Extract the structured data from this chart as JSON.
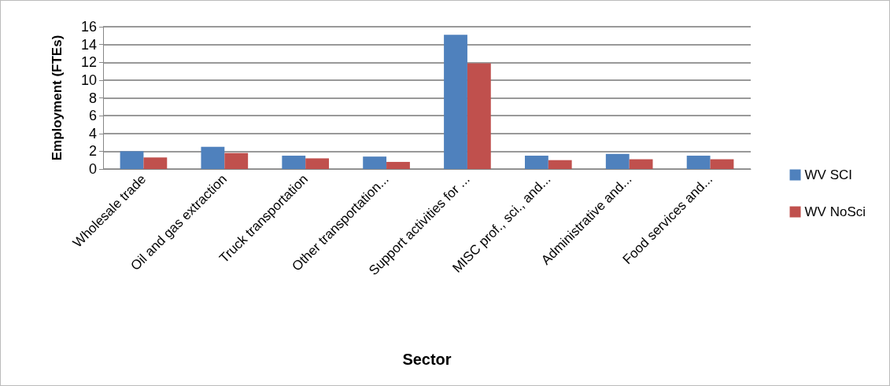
{
  "chart_data": {
    "type": "bar",
    "xlabel": "Sector",
    "ylabel": "Employment (FTEs)",
    "categories": [
      "Wholesale trade",
      "Oil and gas extraction",
      "Truck transportation",
      "Other transportation...",
      "Support activities for ...",
      "MISC prof., sci., and...",
      "Administrative and...",
      "Food services and..."
    ],
    "series": [
      {
        "name": "WV SCI",
        "color": "#4f81bd",
        "values": [
          2.0,
          2.5,
          1.5,
          1.4,
          15.1,
          1.5,
          1.7,
          1.5
        ]
      },
      {
        "name": "WV NoSci",
        "color": "#c0504d",
        "values": [
          1.3,
          1.8,
          1.2,
          0.8,
          11.9,
          1.0,
          1.1,
          1.1
        ]
      }
    ],
    "ylim": [
      0,
      16
    ],
    "yticks": [
      0,
      2,
      4,
      6,
      8,
      10,
      12,
      14,
      16
    ],
    "grid": "y",
    "legend": "right"
  }
}
